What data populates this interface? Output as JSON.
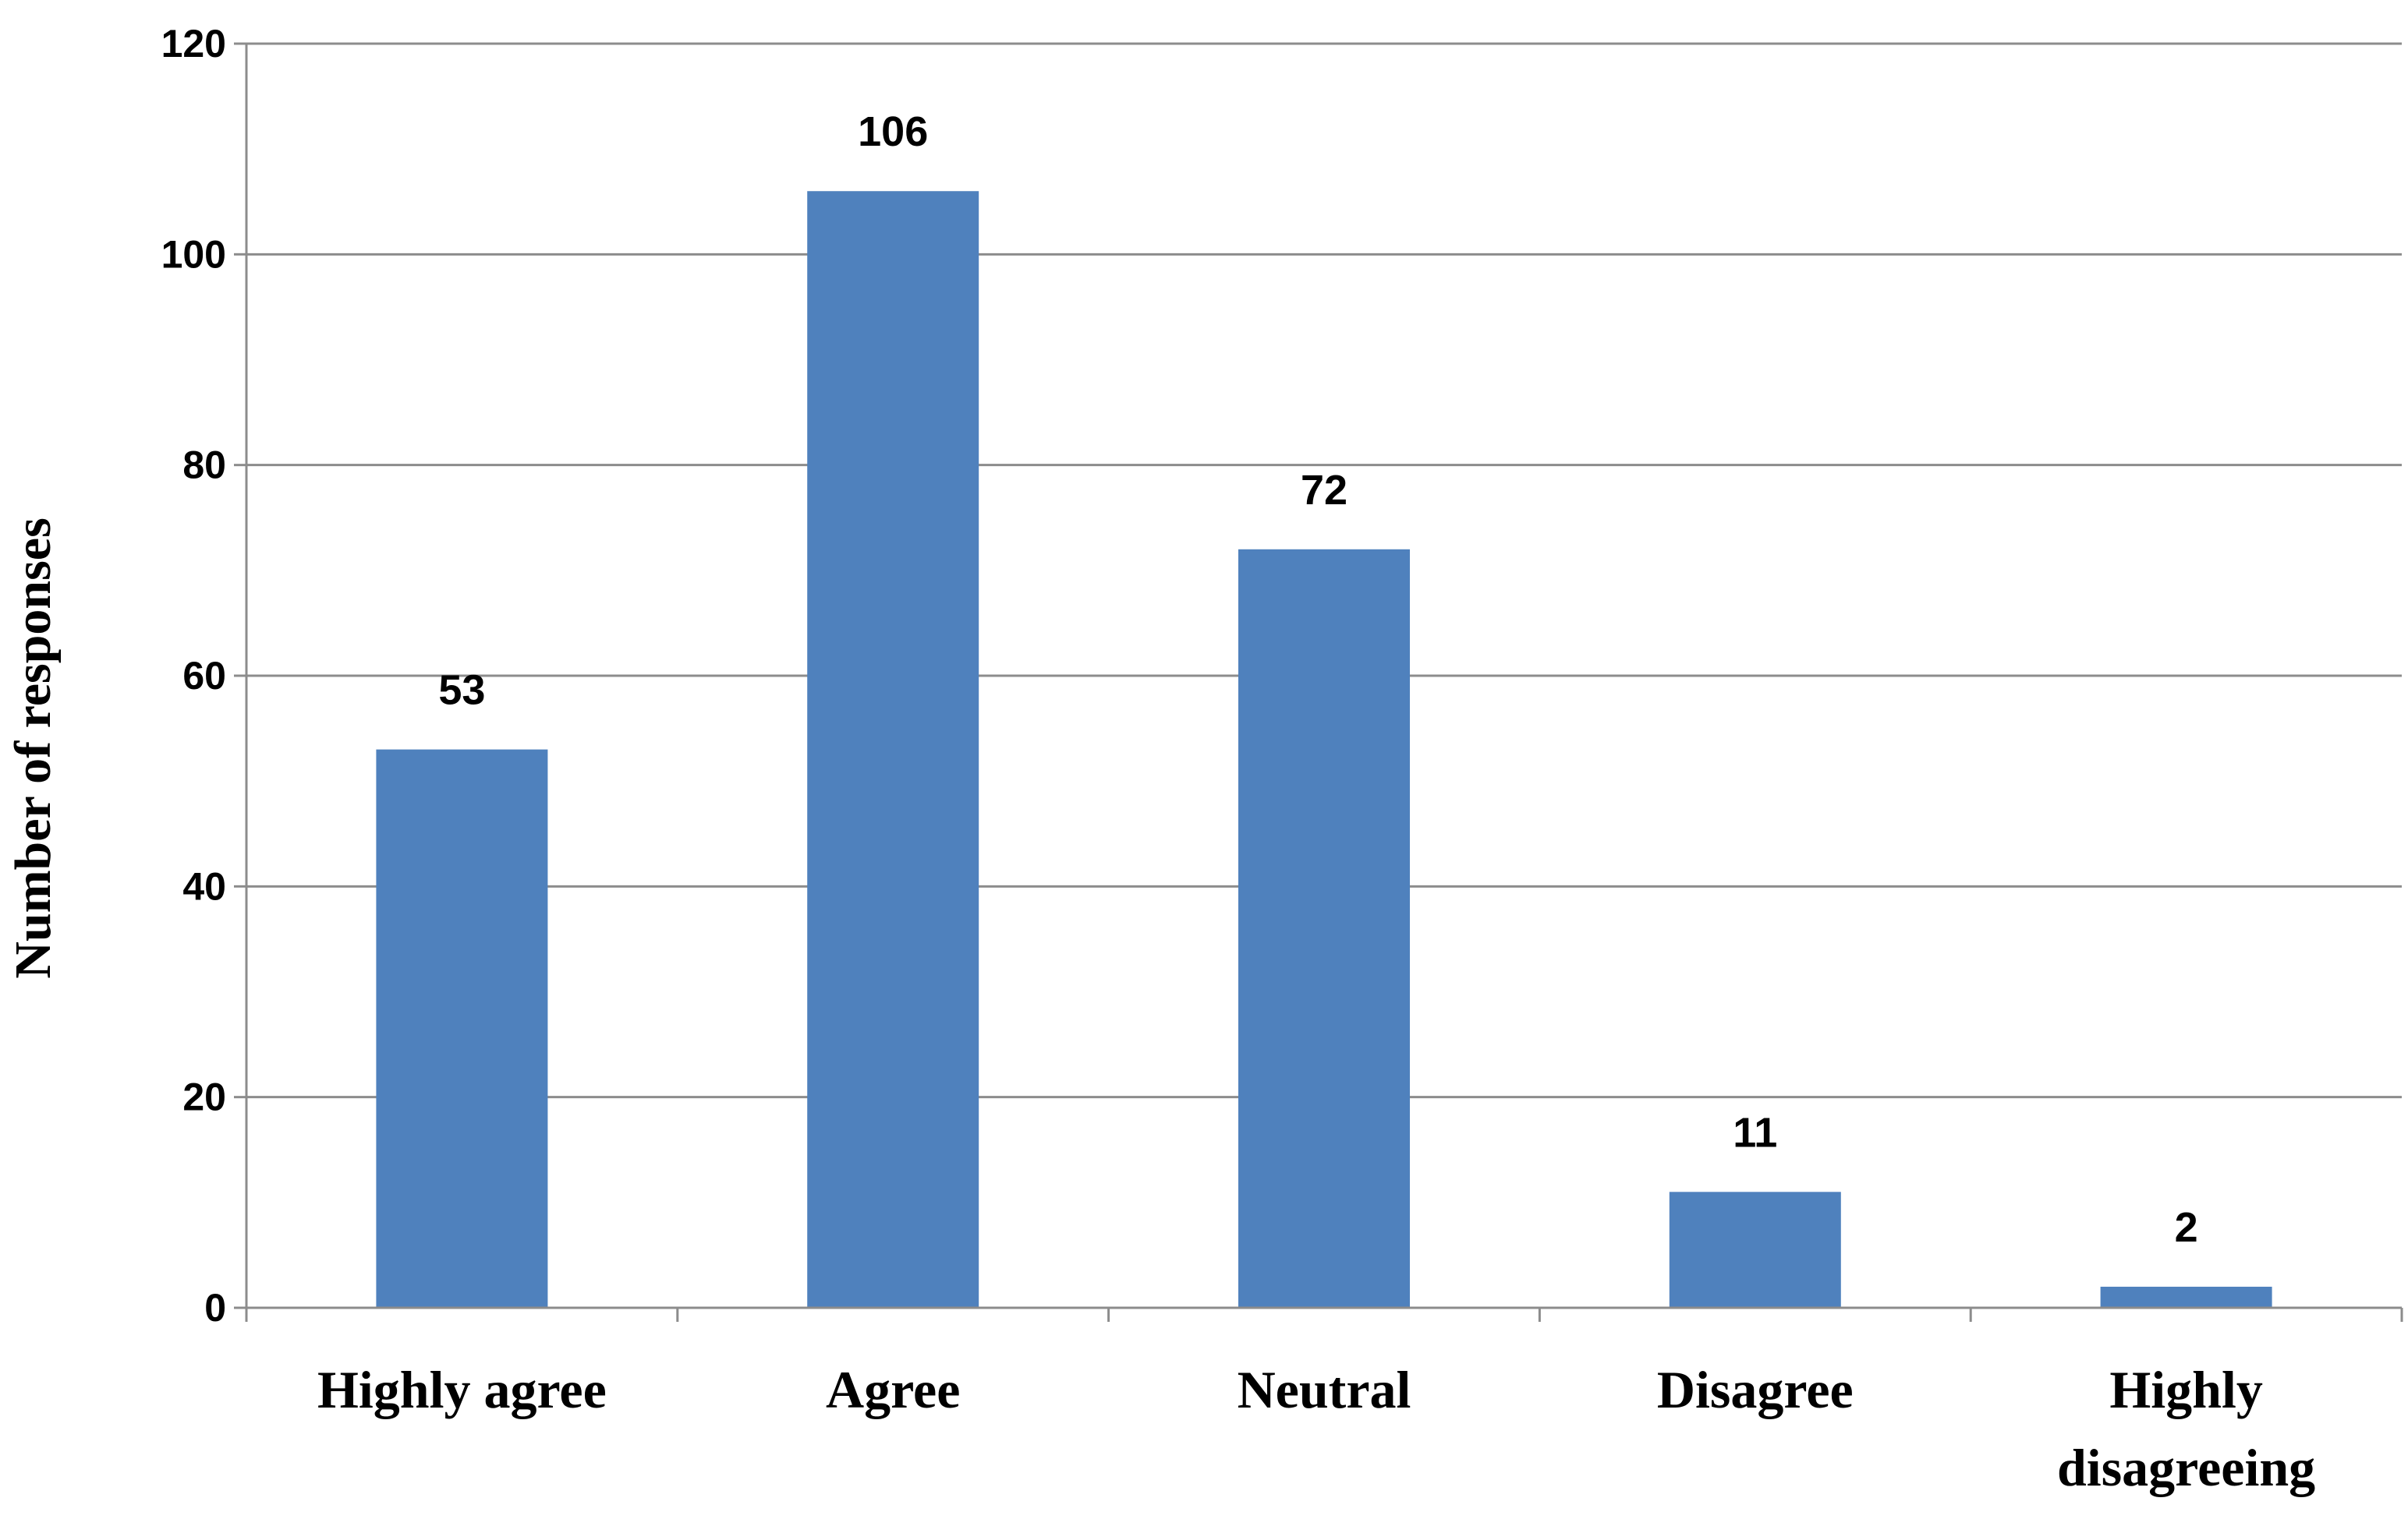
{
  "chart_data": {
    "type": "bar",
    "categories": [
      [
        "Highly agree"
      ],
      [
        "Agree"
      ],
      [
        "Neutral"
      ],
      [
        "Disagree"
      ],
      [
        "Highly",
        "disagreeing"
      ]
    ],
    "values": [
      53,
      106,
      72,
      11,
      2
    ],
    "title": "",
    "xlabel": "",
    "ylabel": "Number of responses",
    "ylim": [
      0,
      120
    ],
    "yticks": [
      0,
      20,
      40,
      60,
      80,
      100,
      120
    ],
    "grid": true,
    "legend": "none",
    "data_labels": true,
    "colors": {
      "bar": "#4f81bd",
      "grid": "#8c8c8c",
      "axis": "#8c8c8c",
      "text": "#000000"
    }
  }
}
